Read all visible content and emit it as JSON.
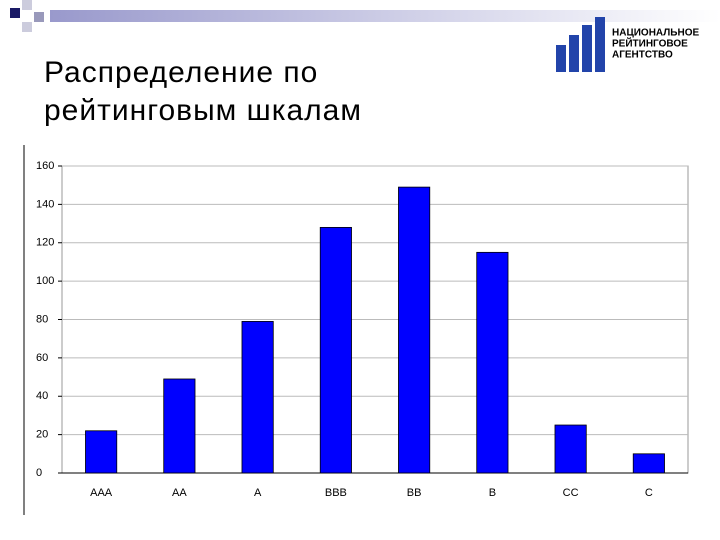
{
  "slide": {
    "logo": [
      "НАЦИОНАЛЬНОЕ",
      "РЕЙТИНГОВОЕ",
      "АГЕНТСТВО"
    ]
  },
  "chart_data": {
    "type": "bar",
    "title": "Распределение по рейтинговым шкалам",
    "categories": [
      "AAA",
      "AA",
      "A",
      "BBB",
      "BB",
      "B",
      "CC",
      "C"
    ],
    "values": [
      22,
      49,
      79,
      128,
      149,
      115,
      25,
      10
    ],
    "color": "#0000ff",
    "ylim": [
      0,
      160
    ],
    "yticks": [
      0,
      20,
      40,
      60,
      80,
      100,
      120,
      140,
      160
    ],
    "grid": true
  }
}
